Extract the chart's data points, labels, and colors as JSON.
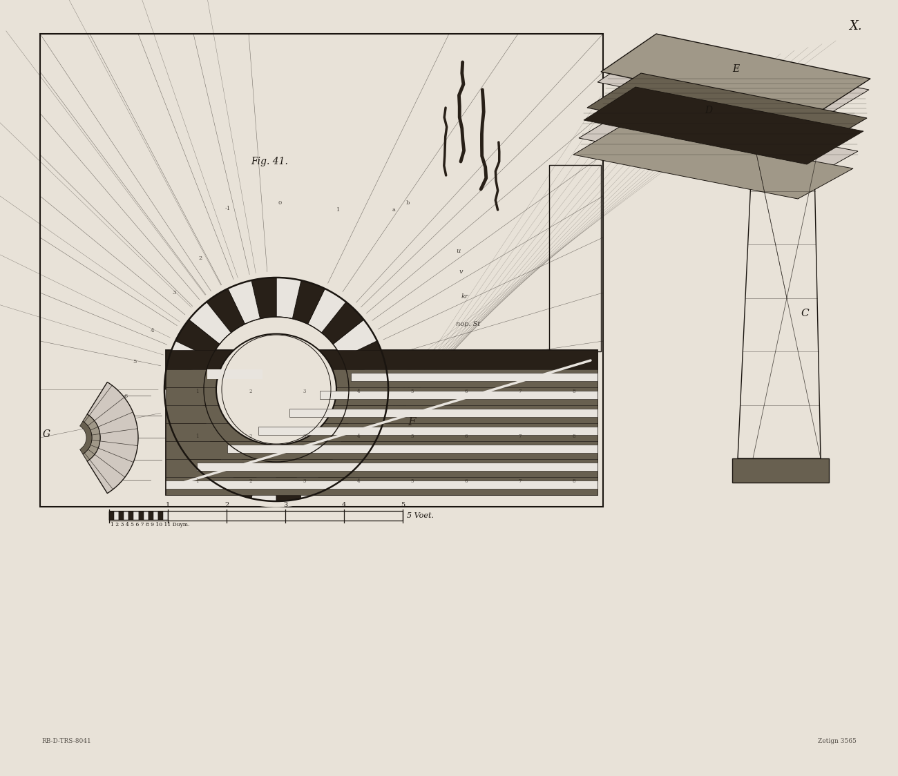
{
  "bg_color": "#e8e2d8",
  "line_color": "#1a1510",
  "dark_gray": "#282018",
  "mid_gray": "#686050",
  "light_gray": "#a09888",
  "very_light_gray": "#d0c8c0",
  "white_ish": "#e8e4de",
  "fig_width": 13.0,
  "fig_height": 11.24,
  "title_x": "X.",
  "fig_label": "Fig. 41.",
  "label_F": "F",
  "label_G": "G",
  "label_C": "C",
  "label_D": "D",
  "label_E": "E",
  "scale_label": "5 Voet.",
  "duym_text": "1 2 3 4 5 6 7 8 9 10 11 Duym.",
  "credit_left": "RB-D-TRS-8041",
  "credit_right": "Zetign 3565",
  "note_1": "nop. St",
  "note_2": "kr",
  "note_3": "u",
  "note_4": "v"
}
